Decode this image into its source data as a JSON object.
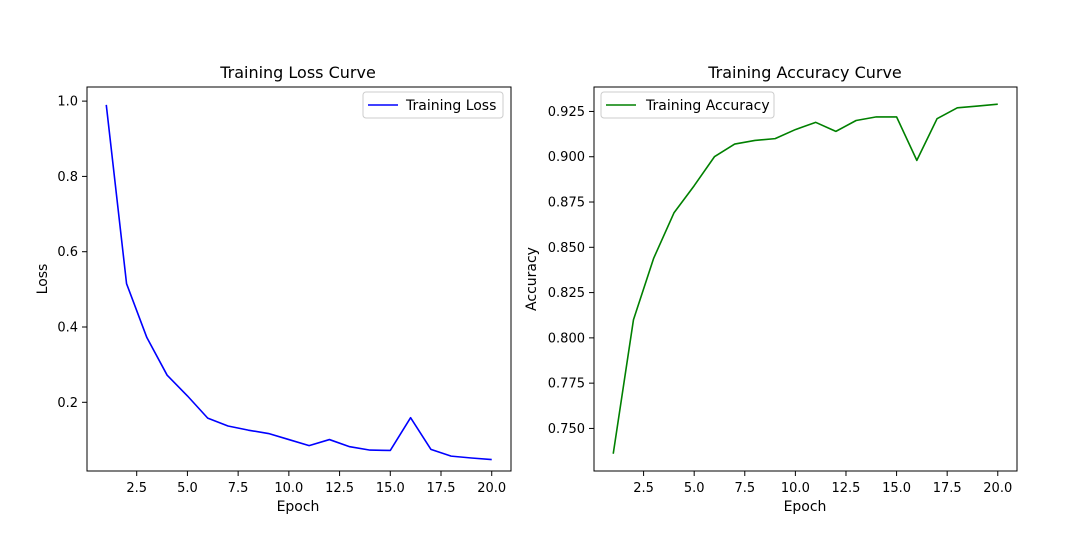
{
  "chart_data": [
    {
      "type": "line",
      "title": "Training Loss Curve",
      "xlabel": "Epoch",
      "ylabel": "Loss",
      "xlim": [
        0.05,
        20.95
      ],
      "ylim": [
        0.0175,
        1.0375
      ],
      "xticks": [
        2.5,
        5.0,
        7.5,
        10.0,
        12.5,
        15.0,
        17.5,
        20.0
      ],
      "xtick_labels": [
        "2.5",
        "5.0",
        "7.5",
        "10.0",
        "12.5",
        "15.0",
        "17.5",
        "20.0"
      ],
      "yticks": [
        0.2,
        0.4,
        0.6,
        0.8,
        1.0
      ],
      "ytick_labels": [
        "0.2",
        "0.4",
        "0.6",
        "0.8",
        "1.0"
      ],
      "grid": false,
      "legend_position": "top-right",
      "series": [
        {
          "name": "Training Loss",
          "color": "#0000ff",
          "x": [
            1,
            2,
            3,
            4,
            5,
            6,
            7,
            8,
            9,
            10,
            11,
            12,
            13,
            14,
            15,
            16,
            17,
            18,
            19,
            20
          ],
          "values": [
            0.99,
            0.515,
            0.372,
            0.272,
            0.217,
            0.158,
            0.137,
            0.126,
            0.117,
            0.101,
            0.085,
            0.101,
            0.082,
            0.073,
            0.072,
            0.159,
            0.075,
            0.057,
            0.052,
            0.048
          ]
        }
      ]
    },
    {
      "type": "line",
      "title": "Training Accuracy Curve",
      "xlabel": "Epoch",
      "ylabel": "Accuracy",
      "xlim": [
        0.05,
        20.95
      ],
      "ylim": [
        0.7265,
        0.9385
      ],
      "xticks": [
        2.5,
        5.0,
        7.5,
        10.0,
        12.5,
        15.0,
        17.5,
        20.0
      ],
      "xtick_labels": [
        "2.5",
        "5.0",
        "7.5",
        "10.0",
        "12.5",
        "15.0",
        "17.5",
        "20.0"
      ],
      "yticks": [
        0.75,
        0.775,
        0.8,
        0.825,
        0.85,
        0.875,
        0.9,
        0.925
      ],
      "ytick_labels": [
        "0.750",
        "0.775",
        "0.800",
        "0.825",
        "0.850",
        "0.875",
        "0.900",
        "0.925"
      ],
      "grid": false,
      "legend_position": "top-left",
      "series": [
        {
          "name": "Training Accuracy",
          "color": "#008000",
          "x": [
            1,
            2,
            3,
            4,
            5,
            6,
            7,
            8,
            9,
            10,
            11,
            12,
            13,
            14,
            15,
            16,
            17,
            18,
            19,
            20
          ],
          "values": [
            0.736,
            0.81,
            0.844,
            0.869,
            0.884,
            0.9,
            0.907,
            0.909,
            0.91,
            0.915,
            0.919,
            0.914,
            0.92,
            0.922,
            0.922,
            0.898,
            0.921,
            0.927,
            0.928,
            0.929
          ]
        }
      ]
    }
  ]
}
